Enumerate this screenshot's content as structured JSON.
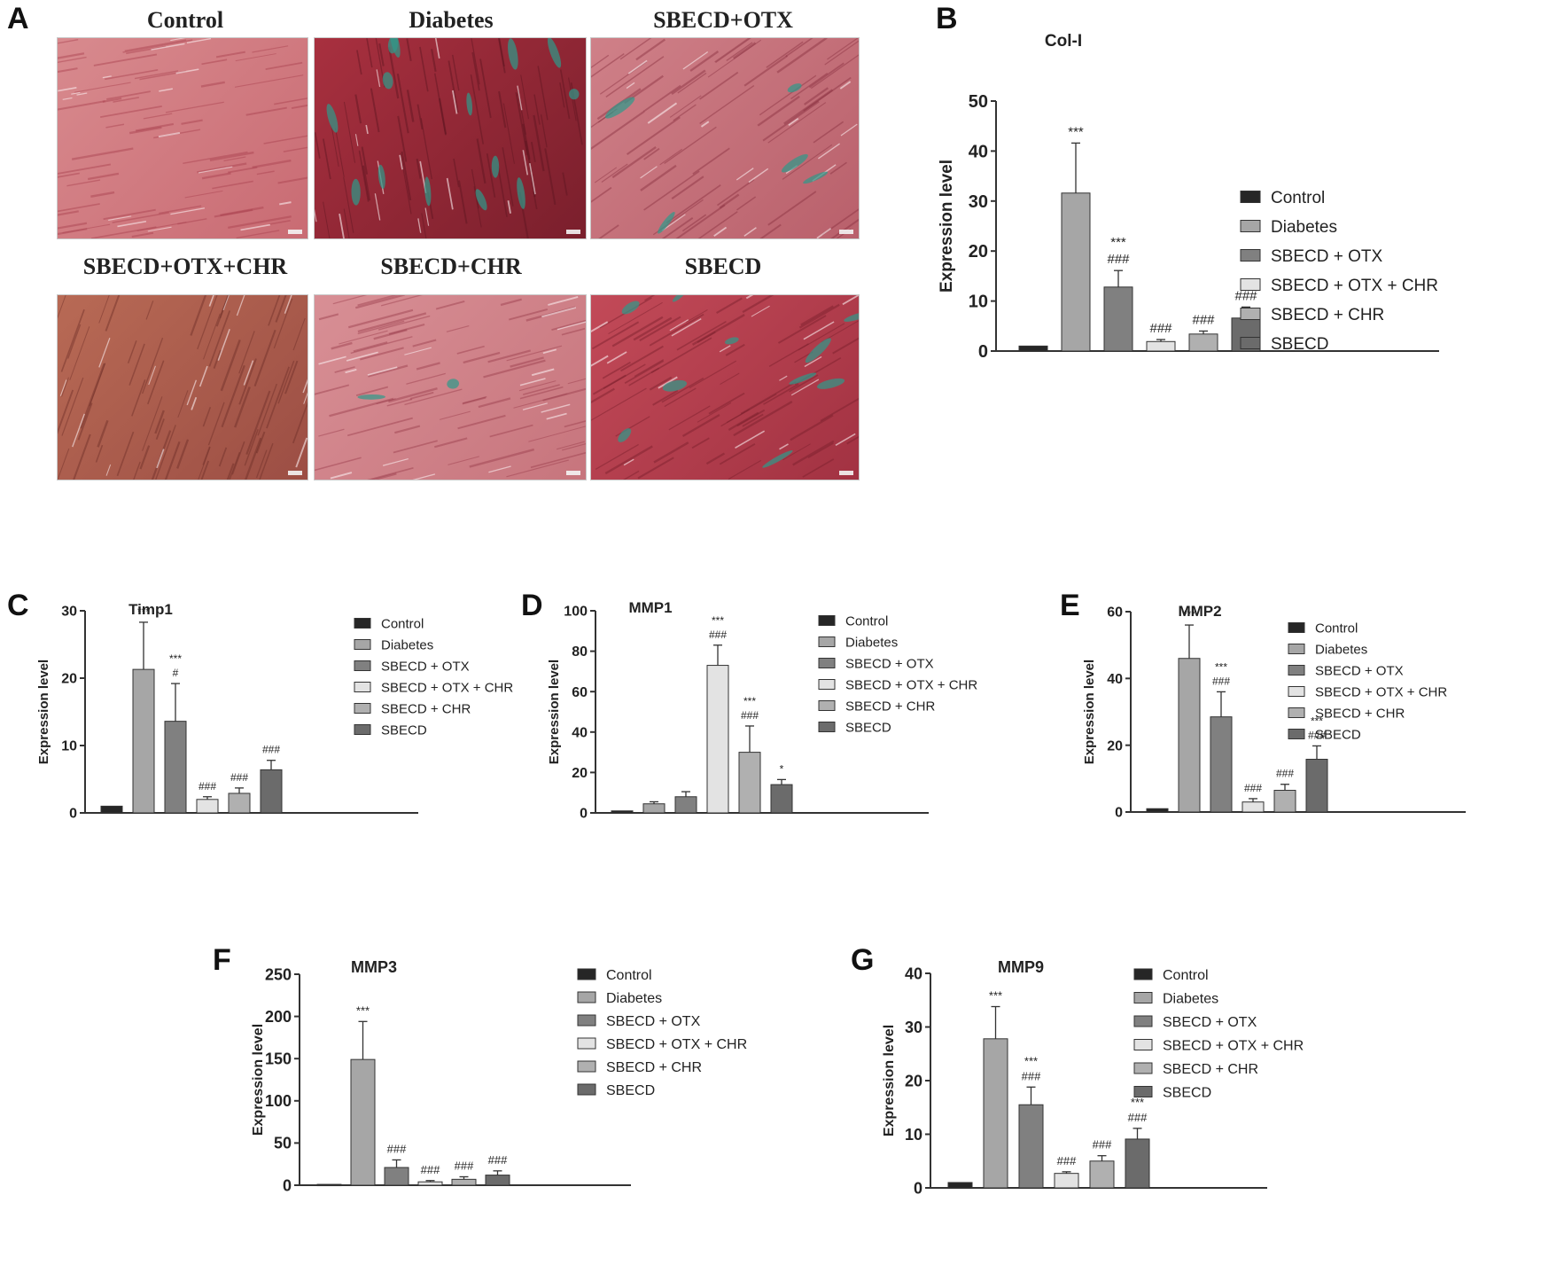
{
  "panel_labels": [
    "A",
    "B",
    "C",
    "D",
    "E",
    "F",
    "G"
  ],
  "histology": {
    "panels": [
      {
        "title": "Control",
        "tone": "control"
      },
      {
        "title": "Diabetes",
        "tone": "fibrotic"
      },
      {
        "title": "SBECD+OTX",
        "tone": "mild"
      },
      {
        "title": "SBECD+OTX+CHR",
        "tone": "brown"
      },
      {
        "title": "SBECD+CHR",
        "tone": "smooth"
      },
      {
        "title": "SBECD",
        "tone": "fibrotic2"
      }
    ],
    "colors": {
      "muscle": "#c0545f",
      "collagen": "#2e9a8a",
      "dark": "#7a1f2c"
    }
  },
  "legend_entries": [
    "Control",
    "Diabetes",
    "SBECD + OTX",
    "SBECD + OTX + CHR",
    "SBECD + CHR",
    "SBECD"
  ],
  "bar_colors": [
    "#262626",
    "#a6a6a6",
    "#808080",
    "#e3e3e3",
    "#b0b0b0",
    "#6b6b6b"
  ],
  "chart_data": [
    {
      "id": "B",
      "type": "bar",
      "title": "Col-I",
      "ylabel": "Expression level",
      "xlabel": "",
      "categories": [
        "Control",
        "Diabetes",
        "SBECD + OTX",
        "SBECD + OTX + CHR",
        "SBECD + CHR",
        "SBECD"
      ],
      "values": [
        1,
        31.6,
        12.8,
        1.9,
        3.4,
        6.6
      ],
      "errors": [
        0,
        10,
        3.3,
        0.4,
        0.6,
        2.2
      ],
      "annotations": [
        [],
        [
          "***"
        ],
        [
          "***",
          "###"
        ],
        [
          "###"
        ],
        [
          "###"
        ],
        [
          "###"
        ]
      ],
      "ylim": [
        0,
        50
      ],
      "yticks": [
        0,
        10,
        20,
        30,
        40,
        50
      ]
    },
    {
      "id": "C",
      "type": "bar",
      "title": "Timp1",
      "ylabel": "Expression level",
      "xlabel": "",
      "categories": [
        "Control",
        "Diabetes",
        "SBECD + OTX",
        "SBECD + OTX + CHR",
        "SBECD + CHR",
        "SBECD"
      ],
      "values": [
        1,
        21.3,
        13.6,
        2.0,
        2.9,
        6.4
      ],
      "errors": [
        0,
        7,
        5.6,
        0.4,
        0.8,
        1.4
      ],
      "annotations": [
        [],
        [
          "***"
        ],
        [
          "***",
          "#"
        ],
        [
          "###"
        ],
        [
          "###"
        ],
        [
          "###"
        ]
      ],
      "ylim": [
        0,
        30
      ],
      "yticks": [
        0,
        10,
        20,
        30
      ]
    },
    {
      "id": "D",
      "type": "bar",
      "title": "MMP1",
      "ylabel": "Expression level",
      "xlabel": "",
      "categories": [
        "Control",
        "Diabetes",
        "SBECD + OTX",
        "SBECD + OTX + CHR",
        "SBECD + CHR",
        "SBECD"
      ],
      "values": [
        1,
        4.5,
        8,
        73,
        30,
        14
      ],
      "errors": [
        0,
        1,
        2.5,
        10,
        13,
        2.5
      ],
      "annotations": [
        [],
        [],
        [],
        [
          "***",
          "###"
        ],
        [
          "***",
          "###"
        ],
        [
          "*"
        ]
      ],
      "ylim": [
        0,
        100
      ],
      "yticks": [
        0,
        20,
        40,
        60,
        80,
        100
      ]
    },
    {
      "id": "E",
      "type": "bar",
      "title": "MMP2",
      "ylabel": "Expression level",
      "xlabel": "",
      "categories": [
        "Control",
        "Diabetes",
        "SBECD + OTX",
        "SBECD + OTX + CHR",
        "SBECD + CHR",
        "SBECD"
      ],
      "values": [
        1,
        46,
        28.5,
        3,
        6.5,
        15.8
      ],
      "errors": [
        0,
        10,
        7.5,
        1,
        1.8,
        4
      ],
      "annotations": [
        [],
        [
          "***"
        ],
        [
          "***",
          "###"
        ],
        [
          "###"
        ],
        [
          "###"
        ],
        [
          "***",
          "###"
        ]
      ],
      "ylim": [
        0,
        60
      ],
      "yticks": [
        0,
        20,
        40,
        60
      ]
    },
    {
      "id": "F",
      "type": "bar",
      "title": "MMP3",
      "ylabel": "Expression level",
      "xlabel": "",
      "categories": [
        "Control",
        "Diabetes",
        "SBECD + OTX",
        "SBECD + OTX + CHR",
        "SBECD + CHR",
        "SBECD"
      ],
      "values": [
        1,
        149,
        21,
        4,
        7,
        12
      ],
      "errors": [
        0,
        45,
        9,
        1.5,
        3,
        5
      ],
      "annotations": [
        [],
        [
          "***"
        ],
        [
          "###"
        ],
        [
          "###"
        ],
        [
          "###"
        ],
        [
          "###"
        ]
      ],
      "ylim": [
        0,
        250
      ],
      "yticks": [
        0,
        50,
        100,
        150,
        200,
        250
      ]
    },
    {
      "id": "G",
      "type": "bar",
      "title": "MMP9",
      "ylabel": "Expression level",
      "xlabel": "",
      "categories": [
        "Control",
        "Diabetes",
        "SBECD + OTX",
        "SBECD + OTX + CHR",
        "SBECD + CHR",
        "SBECD"
      ],
      "values": [
        1,
        27.8,
        15.5,
        2.7,
        5,
        9.1
      ],
      "errors": [
        0,
        6,
        3.3,
        0.3,
        1,
        2
      ],
      "annotations": [
        [],
        [
          "***"
        ],
        [
          "***",
          "###"
        ],
        [
          "###"
        ],
        [
          "###"
        ],
        [
          "***",
          "###"
        ]
      ],
      "ylim": [
        0,
        40
      ],
      "yticks": [
        0,
        10,
        20,
        30,
        40
      ]
    }
  ]
}
